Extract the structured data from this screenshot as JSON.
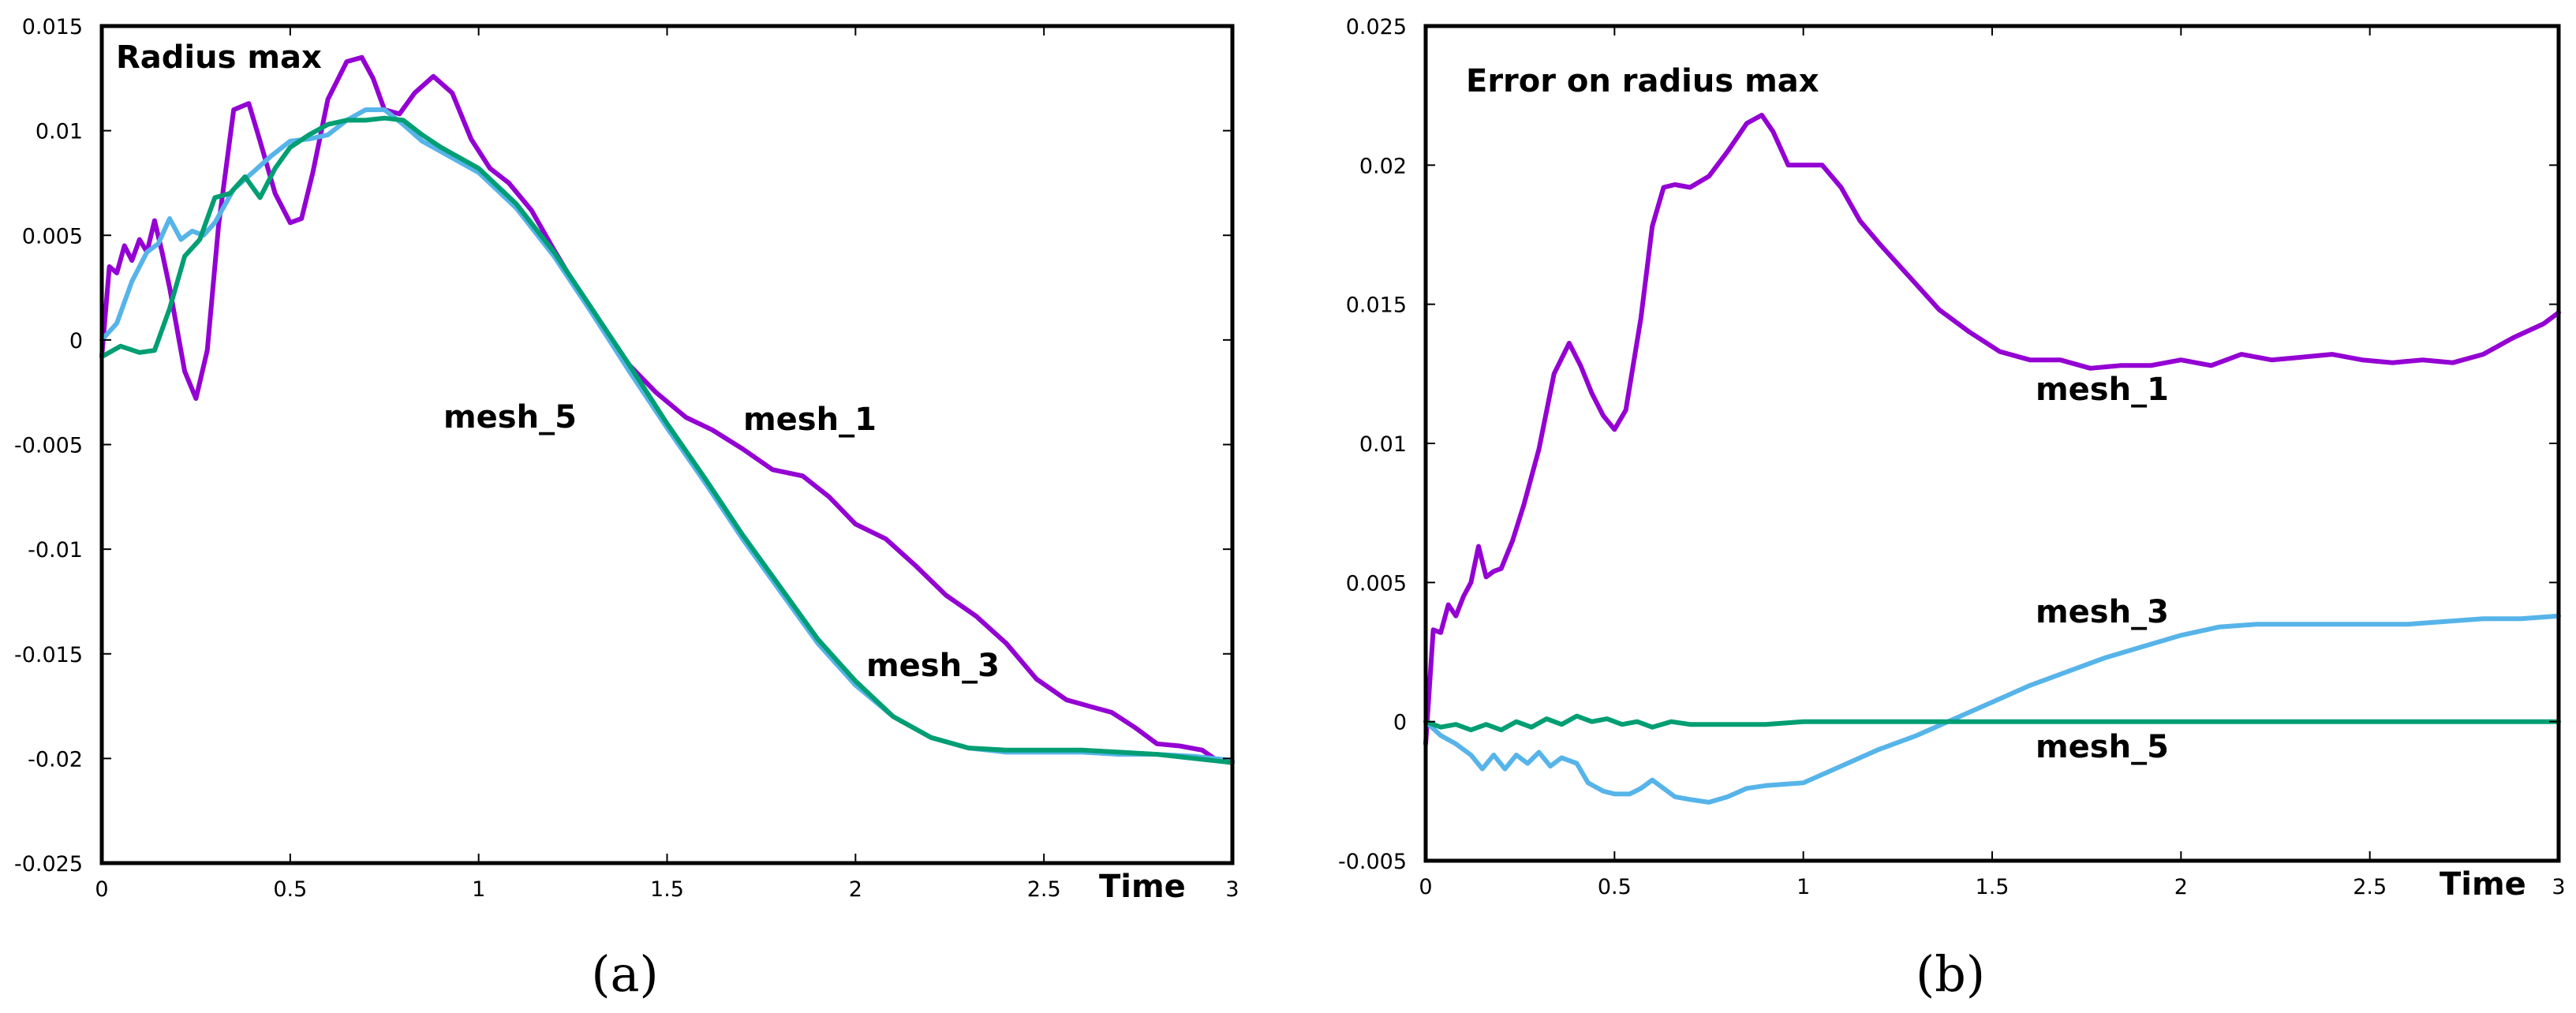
{
  "chart_data": [
    {
      "type": "line",
      "panel": "a",
      "caption": "(a)",
      "title": "Radius max",
      "xlabel": "Time",
      "ylabel": "",
      "xlim": [
        0,
        3
      ],
      "ylim": [
        -0.025,
        0.015
      ],
      "xticks": [
        0,
        0.5,
        1,
        1.5,
        2,
        2.5,
        3
      ],
      "xtick_labels": [
        "0",
        "0.5",
        "1",
        "1.5",
        "2",
        "2.5",
        "3"
      ],
      "yticks": [
        -0.025,
        -0.02,
        -0.015,
        -0.01,
        -0.005,
        0,
        0.005,
        0.01,
        0.015
      ],
      "ytick_labels": [
        "-0.025",
        "-0.02",
        "-0.015",
        "-0.01",
        "-0.005",
        "0",
        "0.005",
        "0.01",
        "0.015"
      ],
      "series": [
        {
          "name": "mesh_1",
          "color": "#9400d3",
          "x": [
            0,
            0.02,
            0.04,
            0.06,
            0.08,
            0.1,
            0.12,
            0.14,
            0.16,
            0.18,
            0.2,
            0.22,
            0.25,
            0.28,
            0.31,
            0.35,
            0.39,
            0.42,
            0.46,
            0.5,
            0.53,
            0.56,
            0.6,
            0.65,
            0.69,
            0.72,
            0.75,
            0.79,
            0.83,
            0.88,
            0.93,
            0.98,
            1.03,
            1.08,
            1.14,
            1.2,
            1.27,
            1.33,
            1.4,
            1.47,
            1.55,
            1.62,
            1.7,
            1.78,
            1.86,
            1.93,
            2.0,
            2.08,
            2.16,
            2.24,
            2.32,
            2.4,
            2.48,
            2.56,
            2.62,
            2.68,
            2.74,
            2.8,
            2.86,
            2.92,
            2.96,
            3.0
          ],
          "y": [
            -0.0008,
            0.0035,
            0.0032,
            0.0045,
            0.0038,
            0.0048,
            0.0042,
            0.0057,
            0.0042,
            0.0025,
            0.0005,
            -0.0015,
            -0.0028,
            -0.0005,
            0.0055,
            0.011,
            0.0113,
            0.0095,
            0.007,
            0.0056,
            0.0058,
            0.008,
            0.0115,
            0.0133,
            0.0135,
            0.0125,
            0.011,
            0.0108,
            0.0118,
            0.0126,
            0.0118,
            0.0096,
            0.0082,
            0.0075,
            0.0062,
            0.0043,
            0.0022,
            0.0005,
            -0.0012,
            -0.0025,
            -0.0037,
            -0.0043,
            -0.0052,
            -0.0062,
            -0.0065,
            -0.0075,
            -0.0088,
            -0.0095,
            -0.0108,
            -0.0122,
            -0.0132,
            -0.0145,
            -0.0162,
            -0.0172,
            -0.0175,
            -0.0178,
            -0.0185,
            -0.0193,
            -0.0194,
            -0.0196,
            -0.0201,
            -0.0202
          ]
        },
        {
          "name": "mesh_3",
          "color": "#56b4e9",
          "x": [
            0,
            0.04,
            0.08,
            0.12,
            0.15,
            0.18,
            0.21,
            0.24,
            0.27,
            0.3,
            0.35,
            0.4,
            0.45,
            0.5,
            0.55,
            0.6,
            0.65,
            0.7,
            0.75,
            0.8,
            0.85,
            0.9,
            1.0,
            1.1,
            1.2,
            1.3,
            1.4,
            1.5,
            1.6,
            1.7,
            1.8,
            1.9,
            2.0,
            2.1,
            2.2,
            2.3,
            2.4,
            2.5,
            2.6,
            2.7,
            2.8,
            2.9,
            3.0
          ],
          "y": [
            0,
            0.0008,
            0.0028,
            0.0042,
            0.0046,
            0.0058,
            0.0048,
            0.0052,
            0.005,
            0.0056,
            0.0072,
            0.008,
            0.0088,
            0.0095,
            0.0096,
            0.0098,
            0.0105,
            0.011,
            0.011,
            0.0103,
            0.0095,
            0.009,
            0.008,
            0.0063,
            0.004,
            0.0013,
            -0.0015,
            -0.0042,
            -0.0068,
            -0.0095,
            -0.012,
            -0.0145,
            -0.0165,
            -0.018,
            -0.019,
            -0.0195,
            -0.0197,
            -0.0197,
            -0.0197,
            -0.0198,
            -0.0198,
            -0.0199,
            -0.0201
          ]
        },
        {
          "name": "mesh_5",
          "color": "#009e73",
          "x": [
            0,
            0.05,
            0.1,
            0.14,
            0.18,
            0.22,
            0.26,
            0.3,
            0.34,
            0.38,
            0.42,
            0.46,
            0.5,
            0.55,
            0.6,
            0.65,
            0.7,
            0.75,
            0.8,
            0.85,
            0.9,
            1.0,
            1.1,
            1.2,
            1.3,
            1.4,
            1.5,
            1.6,
            1.7,
            1.8,
            1.9,
            2.0,
            2.1,
            2.2,
            2.3,
            2.4,
            2.5,
            2.6,
            2.7,
            2.8,
            2.9,
            3.0
          ],
          "y": [
            -0.0008,
            -0.0003,
            -0.0006,
            -0.0005,
            0.0015,
            0.004,
            0.0048,
            0.0068,
            0.007,
            0.0078,
            0.0068,
            0.0082,
            0.0092,
            0.0098,
            0.0103,
            0.0105,
            0.0105,
            0.0106,
            0.0105,
            0.0098,
            0.0092,
            0.0082,
            0.0065,
            0.0042,
            0.0015,
            -0.0012,
            -0.004,
            -0.0066,
            -0.0093,
            -0.0118,
            -0.0143,
            -0.0163,
            -0.018,
            -0.019,
            -0.0195,
            -0.0196,
            -0.0196,
            -0.0196,
            -0.0197,
            -0.0198,
            -0.02,
            -0.0202
          ]
        }
      ],
      "annotations": [
        "mesh_5",
        "mesh_1",
        "mesh_3"
      ]
    },
    {
      "type": "line",
      "panel": "b",
      "caption": "(b)",
      "title": "Error on radius max",
      "xlabel": "Time",
      "ylabel": "",
      "xlim": [
        0,
        3
      ],
      "ylim": [
        -0.005,
        0.025
      ],
      "xticks": [
        0,
        0.5,
        1,
        1.5,
        2,
        2.5,
        3
      ],
      "xtick_labels": [
        "0",
        "0.5",
        "1",
        "1.5",
        "2",
        "2.5",
        "3"
      ],
      "yticks": [
        -0.005,
        0,
        0.005,
        0.01,
        0.015,
        0.02,
        0.025
      ],
      "ytick_labels": [
        "-0.005",
        "0",
        "0.005",
        "0.01",
        "0.015",
        "0.02",
        "0.025"
      ],
      "series": [
        {
          "name": "mesh_1",
          "color": "#9400d3",
          "x": [
            0,
            0.02,
            0.04,
            0.06,
            0.08,
            0.1,
            0.12,
            0.14,
            0.16,
            0.18,
            0.2,
            0.23,
            0.26,
            0.3,
            0.34,
            0.38,
            0.41,
            0.44,
            0.47,
            0.5,
            0.53,
            0.57,
            0.6,
            0.63,
            0.66,
            0.7,
            0.75,
            0.8,
            0.85,
            0.89,
            0.92,
            0.96,
            1.0,
            1.05,
            1.1,
            1.15,
            1.2,
            1.28,
            1.36,
            1.44,
            1.52,
            1.6,
            1.68,
            1.76,
            1.84,
            1.92,
            2.0,
            2.08,
            2.16,
            2.24,
            2.32,
            2.4,
            2.48,
            2.56,
            2.64,
            2.72,
            2.8,
            2.88,
            2.96,
            3.0
          ],
          "y": [
            -0.0008,
            0.0033,
            0.0032,
            0.0042,
            0.0038,
            0.0045,
            0.005,
            0.0063,
            0.0052,
            0.0054,
            0.0055,
            0.0065,
            0.0078,
            0.0098,
            0.0125,
            0.0136,
            0.0128,
            0.0118,
            0.011,
            0.0105,
            0.0112,
            0.0145,
            0.0178,
            0.0192,
            0.0193,
            0.0192,
            0.0196,
            0.0205,
            0.0215,
            0.0218,
            0.0212,
            0.02,
            0.02,
            0.02,
            0.0192,
            0.018,
            0.0172,
            0.016,
            0.0148,
            0.014,
            0.0133,
            0.013,
            0.013,
            0.0127,
            0.0128,
            0.0128,
            0.013,
            0.0128,
            0.0132,
            0.013,
            0.0131,
            0.0132,
            0.013,
            0.0129,
            0.013,
            0.0129,
            0.0132,
            0.0138,
            0.0143,
            0.0147
          ]
        },
        {
          "name": "mesh_3",
          "color": "#56b4e9",
          "x": [
            0,
            0.04,
            0.08,
            0.12,
            0.15,
            0.18,
            0.21,
            0.24,
            0.27,
            0.3,
            0.33,
            0.36,
            0.4,
            0.43,
            0.47,
            0.5,
            0.54,
            0.57,
            0.6,
            0.63,
            0.66,
            0.7,
            0.75,
            0.8,
            0.85,
            0.9,
            1.0,
            1.1,
            1.2,
            1.3,
            1.4,
            1.5,
            1.6,
            1.7,
            1.8,
            1.9,
            2.0,
            2.1,
            2.2,
            2.3,
            2.4,
            2.5,
            2.6,
            2.7,
            2.8,
            2.9,
            3.0
          ],
          "y": [
            0,
            -0.0005,
            -0.0008,
            -0.0012,
            -0.0017,
            -0.0012,
            -0.0017,
            -0.0012,
            -0.0015,
            -0.0011,
            -0.0016,
            -0.0013,
            -0.0015,
            -0.0022,
            -0.0025,
            -0.0026,
            -0.0026,
            -0.0024,
            -0.0021,
            -0.0024,
            -0.0027,
            -0.0028,
            -0.0029,
            -0.0027,
            -0.0024,
            -0.0023,
            -0.0022,
            -0.0016,
            -0.001,
            -0.0005,
            0.0001,
            0.0007,
            0.0013,
            0.0018,
            0.0023,
            0.0027,
            0.0031,
            0.0034,
            0.0035,
            0.0035,
            0.0035,
            0.0035,
            0.0035,
            0.0036,
            0.0037,
            0.0037,
            0.0038
          ]
        },
        {
          "name": "mesh_5",
          "color": "#009e73",
          "x": [
            0,
            0.04,
            0.08,
            0.12,
            0.16,
            0.2,
            0.24,
            0.28,
            0.32,
            0.36,
            0.4,
            0.44,
            0.48,
            0.52,
            0.56,
            0.6,
            0.65,
            0.7,
            0.8,
            0.9,
            1.0,
            1.2,
            1.4,
            1.6,
            1.8,
            2.0,
            2.2,
            2.4,
            2.6,
            2.8,
            3.0
          ],
          "y": [
            0,
            -0.0002,
            -0.0001,
            -0.0003,
            -0.0001,
            -0.0003,
            0,
            -0.0002,
            0.0001,
            -0.0001,
            0.0002,
            0,
            0.0001,
            -0.0001,
            0,
            -0.0002,
            0,
            -0.0001,
            -0.0001,
            -0.0001,
            0,
            0,
            0,
            0,
            0,
            0,
            0,
            0,
            0,
            0,
            0
          ]
        }
      ],
      "annotations": [
        "mesh_1",
        "mesh_3",
        "mesh_5"
      ]
    }
  ]
}
